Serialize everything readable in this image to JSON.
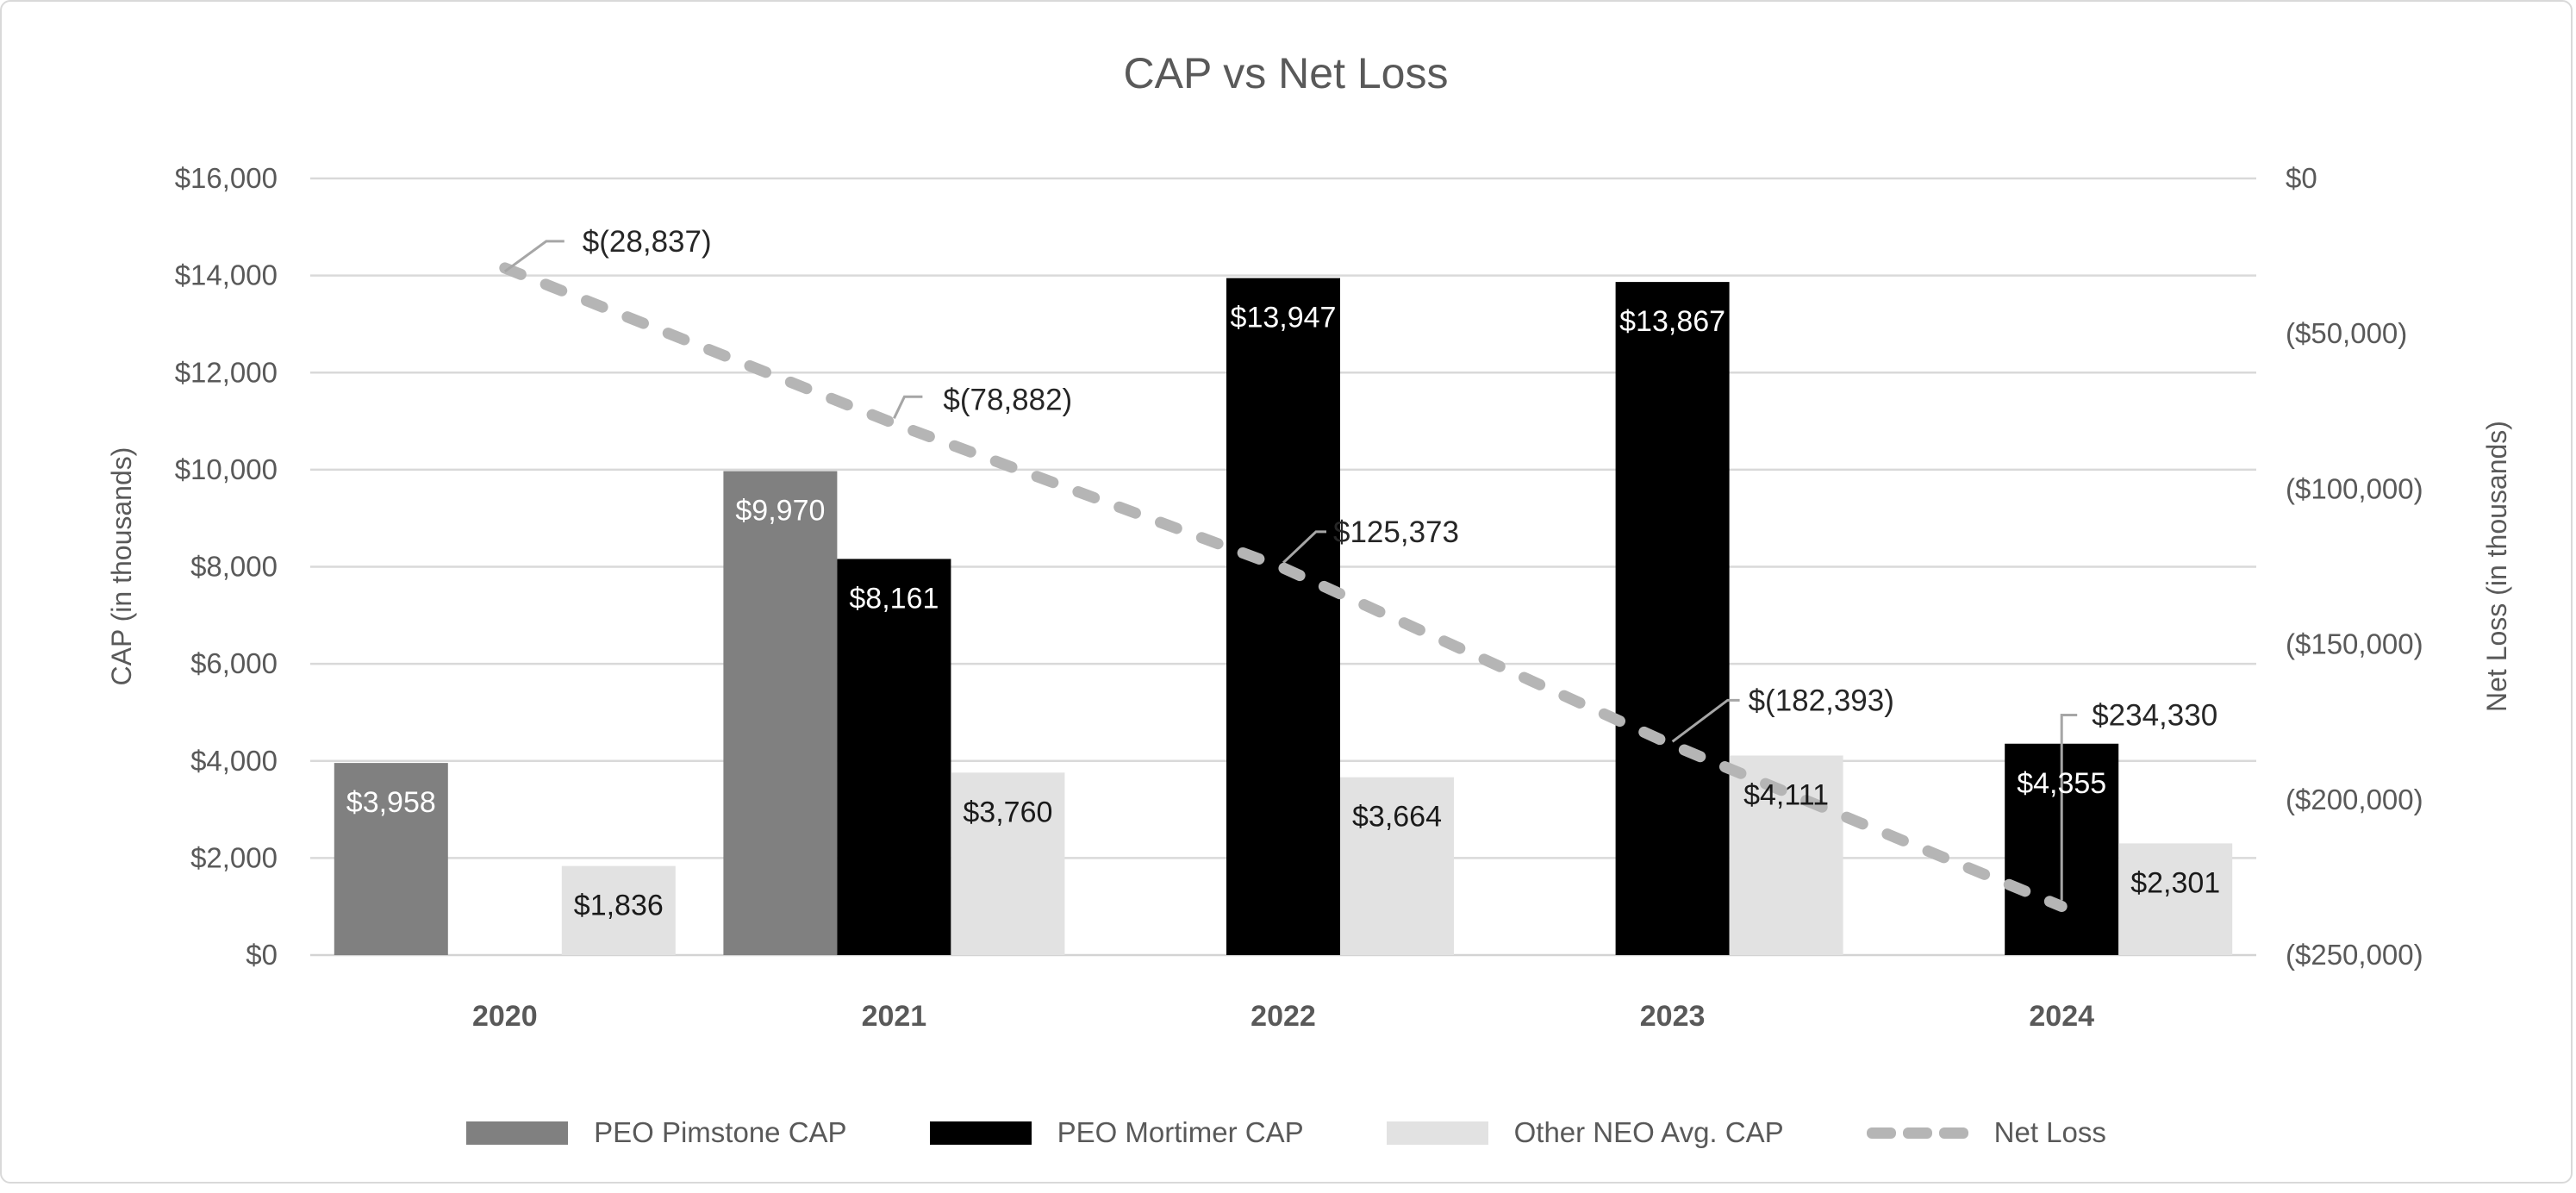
{
  "chart_data": {
    "type": "combo-bar-line",
    "title": "CAP vs Net Loss",
    "categories": [
      "2020",
      "2021",
      "2022",
      "2023",
      "2024"
    ],
    "bar_series": [
      {
        "name": "PEO Pimstone CAP",
        "color": "#808080",
        "label_color": "#ffffff",
        "values": [
          3958,
          9970,
          null,
          null,
          null
        ],
        "labels": [
          "$3,958",
          "$9,970",
          null,
          null,
          null
        ]
      },
      {
        "name": "PEO Mortimer CAP",
        "color": "#000000",
        "label_color": "#ffffff",
        "values": [
          null,
          8161,
          13947,
          13867,
          4355
        ],
        "labels": [
          null,
          "$8,161",
          "$13,947",
          "$13,867",
          "$4,355"
        ]
      },
      {
        "name": "Other NEO Avg. CAP",
        "color": "#e2e2e2",
        "label_color": "#1a1a1a",
        "values": [
          1836,
          3760,
          3664,
          4111,
          2301
        ],
        "labels": [
          "$1,836",
          "$3,760",
          "$3,664",
          "$4,111",
          "$2,301"
        ]
      }
    ],
    "line_series": {
      "name": "Net Loss",
      "color": "#b5b5b5",
      "axis": "right",
      "values": [
        -28837,
        -78882,
        -125373,
        -182393,
        -234330
      ],
      "labels": [
        "$(28,837)",
        "$(78,882)",
        "$125,373",
        "$(182,393)",
        "$234,330"
      ]
    },
    "left_axis": {
      "title": "CAP (in thousands)",
      "max": 16000,
      "min": 0,
      "tick_step": 2000,
      "ticks": [
        "$16,000",
        "$14,000",
        "$12,000",
        "$10,000",
        "$8,000",
        "$6,000",
        "$4,000",
        "$2,000",
        "$0"
      ]
    },
    "right_axis": {
      "title": "Net Loss (in thousands)",
      "max": 0,
      "min": -250000,
      "tick_step": 50000,
      "ticks": [
        "$0",
        "($50,000)",
        "($100,000)",
        "($150,000)",
        "($200,000)",
        "($250,000)"
      ]
    },
    "legend": [
      {
        "label": "PEO Pimstone CAP",
        "swatch": "rect",
        "color": "#808080"
      },
      {
        "label": "PEO Mortimer CAP",
        "swatch": "rect",
        "color": "#000000"
      },
      {
        "label": "Other NEO Avg. CAP",
        "swatch": "rect",
        "color": "#e2e2e2"
      },
      {
        "label": "Net Loss",
        "swatch": "dash",
        "color": "#b5b5b5"
      }
    ],
    "grid": true,
    "legend_position": "bottom",
    "colors": {
      "text": "#595959",
      "gridline": "#d9d9d9",
      "axis_line": "#d3d3d3",
      "annotation_text": "#262626",
      "leader_line": "#a6a6a6",
      "background": "#ffffff",
      "frame_border": "#d9d9d9"
    }
  }
}
